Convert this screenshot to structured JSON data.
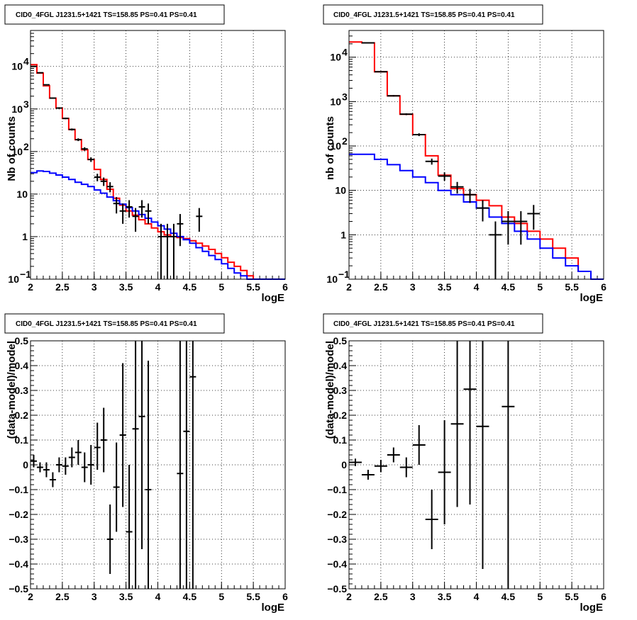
{
  "chart_data": [
    {
      "type": "line",
      "title": "CID0_4FGL J1231.5+1421 TS=158.85 PS=0.41 PS=0.41",
      "xlabel": "logE",
      "ylabel": "Nb of counts",
      "xlim": [
        2,
        6
      ],
      "ylim": [
        0.1,
        70000
      ],
      "yscale": "log",
      "grid": true,
      "x_ticks": [
        "2",
        "2.5",
        "3",
        "3.5",
        "4",
        "4.5",
        "5",
        "5.5",
        "6"
      ],
      "y_ticks": [
        "10",
        "1"
      ],
      "y_power_ticks": [
        {
          "value": 0.1,
          "base": "10",
          "exp": "−1"
        },
        {
          "value": 100,
          "base": "10",
          "exp": "2"
        },
        {
          "value": 1000,
          "base": "10",
          "exp": "3"
        },
        {
          "value": 10000,
          "base": "10",
          "exp": "4"
        }
      ],
      "bin_edges": [
        2,
        2.1,
        2.2,
        2.3,
        2.4,
        2.5,
        2.6,
        2.7,
        2.8,
        2.9,
        3.0,
        3.1,
        3.2,
        3.3,
        3.4,
        3.5,
        3.6,
        3.7,
        3.8,
        3.9,
        4.0,
        4.1,
        4.2,
        4.3,
        4.4,
        4.5,
        4.6,
        4.7,
        4.8,
        4.9,
        5.0,
        5.1,
        5.2,
        5.3,
        5.4,
        5.5,
        5.6,
        5.7,
        5.8,
        5.9,
        6.0
      ],
      "series": [
        {
          "name": "",
          "color": "#ff0000",
          "style": "step",
          "values": [
            11000,
            7000,
            3500,
            1800,
            1050,
            600,
            330,
            190,
            110,
            65,
            38,
            22,
            13,
            8,
            5.5,
            4.0,
            3.2,
            2.5,
            2.0,
            1.6,
            1.3,
            1.1,
            1.0,
            0.95,
            0.9,
            0.8,
            0.7,
            0.6,
            0.5,
            0.4,
            0.32,
            0.25,
            0.2,
            0.16,
            0.12,
            0.1,
            0.1,
            0.1,
            0.1,
            0.1
          ]
        },
        {
          "name": "",
          "color": "#0000ff",
          "style": "step",
          "values": [
            32,
            35,
            34,
            31,
            28,
            25,
            22,
            19,
            17,
            15,
            12.5,
            10.5,
            8.5,
            7.0,
            5.8,
            4.8,
            4.0,
            3.3,
            2.7,
            2.2,
            1.8,
            1.5,
            1.2,
            1.0,
            0.85,
            0.7,
            0.55,
            0.45,
            0.36,
            0.29,
            0.23,
            0.18,
            0.14,
            0.12,
            0.1,
            0.1,
            0.1,
            0.1,
            0.1,
            0.1
          ]
        }
      ],
      "points": [
        {
          "x": 2.05,
          "y": 10000,
          "lo": 9900,
          "hi": 10100
        },
        {
          "x": 2.15,
          "y": 7100,
          "lo": 7000,
          "hi": 7200
        },
        {
          "x": 2.25,
          "y": 3700,
          "lo": 3600,
          "hi": 3800
        },
        {
          "x": 2.35,
          "y": 1800,
          "lo": 1750,
          "hi": 1850
        },
        {
          "x": 2.45,
          "y": 1050,
          "lo": 1000,
          "hi": 1100
        },
        {
          "x": 2.55,
          "y": 600,
          "lo": 575,
          "hi": 625
        },
        {
          "x": 2.65,
          "y": 330,
          "lo": 312,
          "hi": 348
        },
        {
          "x": 2.75,
          "y": 190,
          "lo": 176,
          "hi": 204
        },
        {
          "x": 2.85,
          "y": 115,
          "lo": 104,
          "hi": 126
        },
        {
          "x": 2.95,
          "y": 65,
          "lo": 57,
          "hi": 73
        },
        {
          "x": 3.05,
          "y": 25,
          "lo": 20,
          "hi": 30
        },
        {
          "x": 3.15,
          "y": 20,
          "lo": 15.5,
          "hi": 24.5
        },
        {
          "x": 3.25,
          "y": 15,
          "lo": 11,
          "hi": 19
        },
        {
          "x": 3.35,
          "y": 6,
          "lo": 3.5,
          "hi": 8.5
        },
        {
          "x": 3.45,
          "y": 4,
          "lo": 2.0,
          "hi": 6.0
        },
        {
          "x": 3.55,
          "y": 5,
          "lo": 2.8,
          "hi": 7.2
        },
        {
          "x": 3.65,
          "y": 3,
          "lo": 1.3,
          "hi": 4.7
        },
        {
          "x": 3.75,
          "y": 5,
          "lo": 2.8,
          "hi": 7.2
        },
        {
          "x": 3.85,
          "y": 4,
          "lo": 2.0,
          "hi": 6.0
        },
        {
          "x": 4.05,
          "y": 1,
          "lo": 0.1,
          "hi": 2.0
        },
        {
          "x": 4.15,
          "y": 1,
          "lo": 0.1,
          "hi": 2.0
        },
        {
          "x": 4.25,
          "y": 1,
          "lo": 0.1,
          "hi": 2.0
        },
        {
          "x": 4.35,
          "y": 2,
          "lo": 0.6,
          "hi": 3.4
        },
        {
          "x": 4.65,
          "y": 3,
          "lo": 1.3,
          "hi": 4.7
        }
      ]
    },
    {
      "type": "line",
      "title": "CID0_4FGL J1231.5+1421 TS=158.85 PS=0.41 PS=0.41",
      "xlabel": "logE",
      "ylabel": "nb of counts",
      "xlim": [
        2,
        6
      ],
      "ylim": [
        0.1,
        40000
      ],
      "yscale": "log",
      "grid": true,
      "x_ticks": [
        "2",
        "2.5",
        "3",
        "3.5",
        "4",
        "4.5",
        "5",
        "5.5",
        "6"
      ],
      "y_ticks": [
        "10",
        "1"
      ],
      "y_power_ticks": [
        {
          "value": 0.1,
          "base": "10",
          "exp": "−1"
        },
        {
          "value": 100,
          "base": "10",
          "exp": "2"
        },
        {
          "value": 1000,
          "base": "10",
          "exp": "3"
        },
        {
          "value": 10000,
          "base": "10",
          "exp": "4"
        }
      ],
      "bin_edges": [
        2,
        2.2,
        2.4,
        2.6,
        2.8,
        3.0,
        3.2,
        3.4,
        3.6,
        3.8,
        4.0,
        4.2,
        4.4,
        4.6,
        4.8,
        5.0,
        5.2,
        5.4,
        5.6,
        5.8,
        6.0
      ],
      "series": [
        {
          "name": "",
          "color": "#ff0000",
          "style": "step",
          "values": [
            22000,
            21000,
            4700,
            1350,
            520,
            180,
            60,
            22,
            11,
            8,
            6,
            4.5,
            2.5,
            1.8,
            1.2,
            0.8,
            0.5,
            0.3,
            0.15,
            0.1
          ]
        },
        {
          "name": "",
          "color": "#0000ff",
          "style": "step",
          "values": [
            65,
            65,
            50,
            38,
            28,
            20,
            15,
            10,
            8,
            5.5,
            4,
            2.5,
            1.8,
            1.2,
            0.8,
            0.5,
            0.3,
            0.2,
            0.15,
            0.1
          ]
        }
      ],
      "points": [
        {
          "x": 2.3,
          "y": 21000,
          "lo": 20800,
          "hi": 21200
        },
        {
          "x": 2.5,
          "y": 4700,
          "lo": 4600,
          "hi": 4800
        },
        {
          "x": 2.7,
          "y": 1350,
          "lo": 1300,
          "hi": 1400
        },
        {
          "x": 2.9,
          "y": 520,
          "lo": 495,
          "hi": 545
        },
        {
          "x": 3.1,
          "y": 180,
          "lo": 167,
          "hi": 193
        },
        {
          "x": 3.3,
          "y": 45,
          "lo": 38,
          "hi": 52
        },
        {
          "x": 3.5,
          "y": 21,
          "lo": 16.5,
          "hi": 25.5
        },
        {
          "x": 3.7,
          "y": 12,
          "lo": 8.5,
          "hi": 15.5
        },
        {
          "x": 3.9,
          "y": 8,
          "lo": 5.2,
          "hi": 10.8
        },
        {
          "x": 4.1,
          "y": 4,
          "lo": 2.0,
          "hi": 6.0
        },
        {
          "x": 4.3,
          "y": 1,
          "lo": 0.1,
          "hi": 2.0
        },
        {
          "x": 4.5,
          "y": 2,
          "lo": 0.6,
          "hi": 3.4
        },
        {
          "x": 4.7,
          "y": 2,
          "lo": 0.6,
          "hi": 3.4
        },
        {
          "x": 4.9,
          "y": 3,
          "lo": 1.3,
          "hi": 4.7
        }
      ]
    },
    {
      "type": "scatter",
      "title": "CID0_4FGL J1231.5+1421 TS=158.85 PS=0.41 PS=0.41",
      "xlabel": "logE",
      "ylabel": "(data-model)/model",
      "xlim": [
        2,
        6
      ],
      "ylim": [
        -0.5,
        0.5
      ],
      "grid": true,
      "x_ticks": [
        "2",
        "2.5",
        "3",
        "3.5",
        "4",
        "4.5",
        "5",
        "5.5",
        "6"
      ],
      "y_ticks": [
        "−0.5",
        "−0.4",
        "−0.3",
        "−0.2",
        "−0.1",
        "0",
        "0.1",
        "0.2",
        "0.3",
        "0.4",
        "0.5"
      ],
      "bin_width": 0.1,
      "points": [
        {
          "x": 2.05,
          "y": 0.015,
          "lo": -0.01,
          "hi": 0.04
        },
        {
          "x": 2.15,
          "y": -0.01,
          "lo": -0.03,
          "hi": 0.01
        },
        {
          "x": 2.25,
          "y": -0.02,
          "lo": -0.05,
          "hi": 0.01
        },
        {
          "x": 2.35,
          "y": -0.06,
          "lo": -0.09,
          "hi": -0.03
        },
        {
          "x": 2.45,
          "y": 0.0,
          "lo": -0.03,
          "hi": 0.03
        },
        {
          "x": 2.55,
          "y": -0.005,
          "lo": -0.04,
          "hi": 0.03
        },
        {
          "x": 2.65,
          "y": 0.03,
          "lo": -0.01,
          "hi": 0.07
        },
        {
          "x": 2.75,
          "y": 0.05,
          "lo": 0.0,
          "hi": 0.1
        },
        {
          "x": 2.85,
          "y": -0.01,
          "lo": -0.07,
          "hi": 0.05
        },
        {
          "x": 2.95,
          "y": 0.0,
          "lo": -0.08,
          "hi": 0.08
        },
        {
          "x": 3.05,
          "y": 0.07,
          "lo": -0.02,
          "hi": 0.17
        },
        {
          "x": 3.15,
          "y": 0.1,
          "lo": -0.03,
          "hi": 0.23
        },
        {
          "x": 3.25,
          "y": -0.3,
          "lo": -0.44,
          "hi": -0.16
        },
        {
          "x": 3.35,
          "y": -0.09,
          "lo": -0.27,
          "hi": 0.09
        },
        {
          "x": 3.45,
          "y": 0.12,
          "lo": -0.17,
          "hi": 0.41
        },
        {
          "x": 3.55,
          "y": -0.27,
          "lo": -0.5,
          "hi": 0.0
        },
        {
          "x": 3.65,
          "y": 0.145,
          "lo": -0.5,
          "hi": 0.5
        },
        {
          "x": 3.75,
          "y": 0.195,
          "lo": -0.34,
          "hi": 0.5
        },
        {
          "x": 3.85,
          "y": -0.1,
          "lo": -0.5,
          "hi": 0.42
        },
        {
          "x": 4.35,
          "y": -0.035,
          "lo": -0.5,
          "hi": 0.5
        },
        {
          "x": 4.45,
          "y": 0.135,
          "lo": -0.5,
          "hi": 0.5
        },
        {
          "x": 4.55,
          "y": 0.355,
          "lo": -0.5,
          "hi": 0.5
        }
      ]
    },
    {
      "type": "scatter",
      "title": "CID0_4FGL J1231.5+1421 TS=158.85 PS=0.41 PS=0.41",
      "xlabel": "logE",
      "ylabel": "(data-model)/model",
      "xlim": [
        2,
        6
      ],
      "ylim": [
        -0.5,
        0.5
      ],
      "grid": true,
      "x_ticks": [
        "2",
        "2.5",
        "3",
        "3.5",
        "4",
        "4.5",
        "5",
        "5.5",
        "6"
      ],
      "y_ticks": [
        "−0.5",
        "−0.4",
        "−0.3",
        "−0.2",
        "−0.1",
        "0",
        "0.1",
        "0.2",
        "0.3",
        "0.4",
        "0.5"
      ],
      "bin_width": 0.2,
      "points": [
        {
          "x": 2.1,
          "y": 0.01,
          "lo": -0.005,
          "hi": 0.025
        },
        {
          "x": 2.3,
          "y": -0.04,
          "lo": -0.06,
          "hi": -0.02
        },
        {
          "x": 2.5,
          "y": -0.005,
          "lo": -0.03,
          "hi": 0.02
        },
        {
          "x": 2.7,
          "y": 0.04,
          "lo": 0.01,
          "hi": 0.07
        },
        {
          "x": 2.9,
          "y": -0.01,
          "lo": -0.05,
          "hi": 0.03
        },
        {
          "x": 3.1,
          "y": 0.08,
          "lo": 0.0,
          "hi": 0.16
        },
        {
          "x": 3.3,
          "y": -0.22,
          "lo": -0.34,
          "hi": -0.1
        },
        {
          "x": 3.5,
          "y": -0.03,
          "lo": -0.24,
          "hi": 0.18
        },
        {
          "x": 3.7,
          "y": 0.165,
          "lo": -0.17,
          "hi": 0.5
        },
        {
          "x": 3.9,
          "y": 0.305,
          "lo": -0.16,
          "hi": 0.5
        },
        {
          "x": 4.1,
          "y": 0.155,
          "lo": -0.42,
          "hi": 0.5
        },
        {
          "x": 4.5,
          "y": 0.235,
          "lo": -0.5,
          "hi": 0.5
        }
      ]
    }
  ]
}
